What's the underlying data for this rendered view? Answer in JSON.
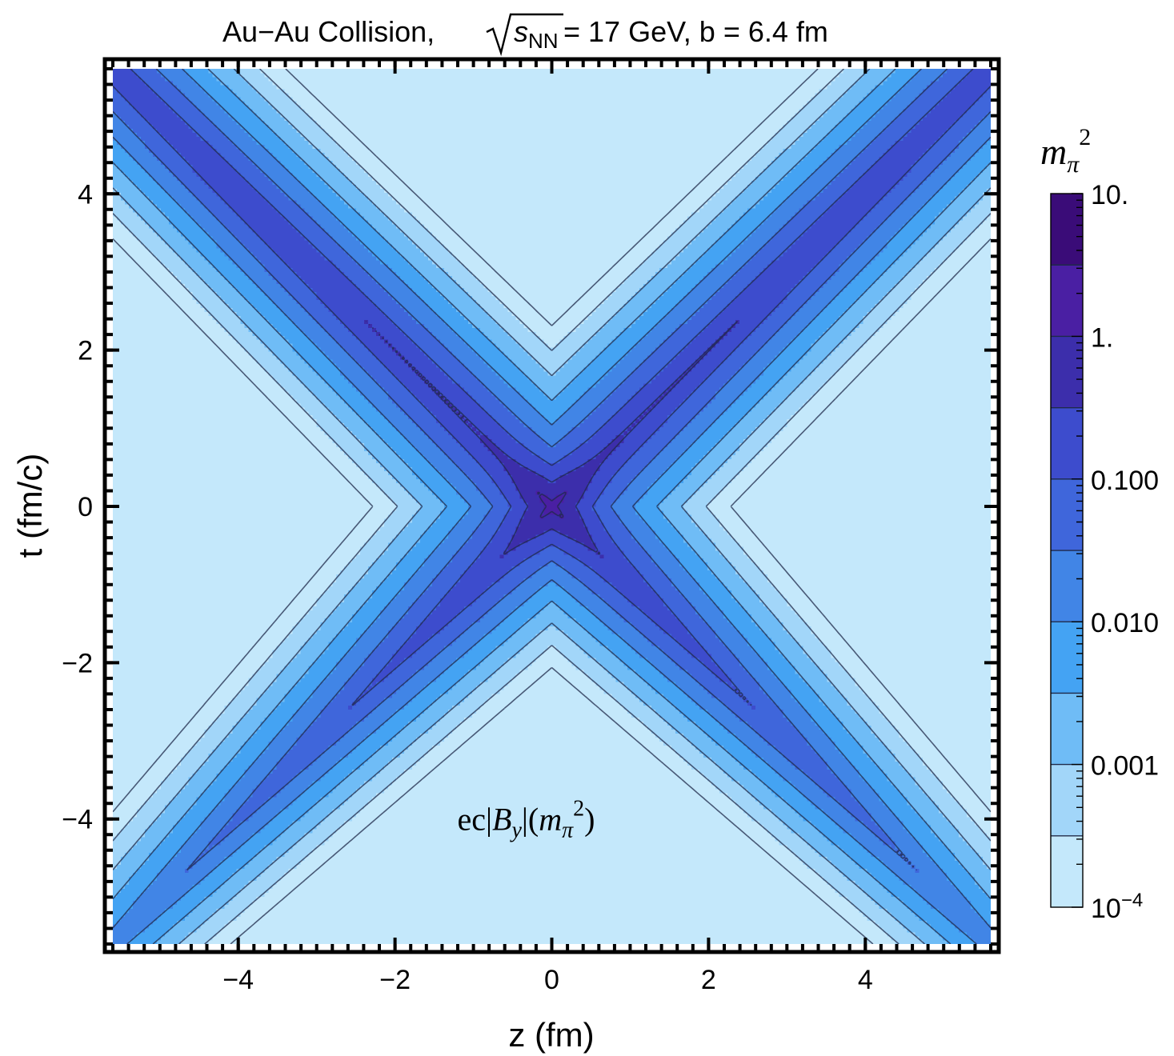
{
  "chart_data": {
    "type": "contour",
    "title": {
      "prefix": "Au−Au Collision, ",
      "sqrt_symbol": "s",
      "sqrt_subscript": "NN",
      "suffix": " = 17 GeV, b = 6.4 fm"
    },
    "xlabel": "z (fm)",
    "ylabel": "t (fm/c)",
    "xlim": [
      -5.6,
      5.6
    ],
    "ylim": [
      -5.6,
      5.6
    ],
    "x_ticks": [
      {
        "value": -4,
        "label": "−4"
      },
      {
        "value": -2,
        "label": "−2"
      },
      {
        "value": 0,
        "label": "0"
      },
      {
        "value": 2,
        "label": "2"
      },
      {
        "value": 4,
        "label": "4"
      }
    ],
    "y_ticks": [
      {
        "value": -4,
        "label": "−4"
      },
      {
        "value": -2,
        "label": "−2"
      },
      {
        "value": 0,
        "label": "0"
      },
      {
        "value": 2,
        "label": "2"
      },
      {
        "value": 4,
        "label": "4"
      }
    ],
    "annotation": {
      "ec": "ec|",
      "B": "B",
      "B_sub": "y",
      "mid": "|(",
      "m": "m",
      "m_sub": "π",
      "m_sup": "2",
      "close": ")"
    },
    "colorbar": {
      "label_base": "m",
      "label_sub": "π",
      "label_sup": "2",
      "scale": "log",
      "range": [
        0.0001,
        10
      ],
      "tick_labels": [
        {
          "value": 10,
          "label": "10."
        },
        {
          "value": 1,
          "label": "1."
        },
        {
          "value": 0.1,
          "label": "0.100"
        },
        {
          "value": 0.01,
          "label": "0.010"
        },
        {
          "value": 0.001,
          "label": "0.001"
        },
        {
          "value": 0.0001,
          "label_base": "10",
          "label_exp": "−4"
        }
      ],
      "level_boundaries": [
        0.0001,
        0.000316,
        0.001,
        0.00316,
        0.01,
        0.0316,
        0.1,
        0.316,
        1,
        3.16,
        10
      ],
      "colors": [
        "#c4e8fb",
        "#a2d6f9",
        "#6fbcf6",
        "#44a3f3",
        "#4185e6",
        "#3f66db",
        "#3d4ccd",
        "#3c2eab",
        "#4a1fa3",
        "#3a0c78",
        "#2a0558"
      ]
    },
    "contour_levels_shown": [
      0.0001,
      0.000316,
      0.001,
      0.00316,
      0.01,
      0.0316,
      0.1,
      0.316,
      1
    ]
  }
}
